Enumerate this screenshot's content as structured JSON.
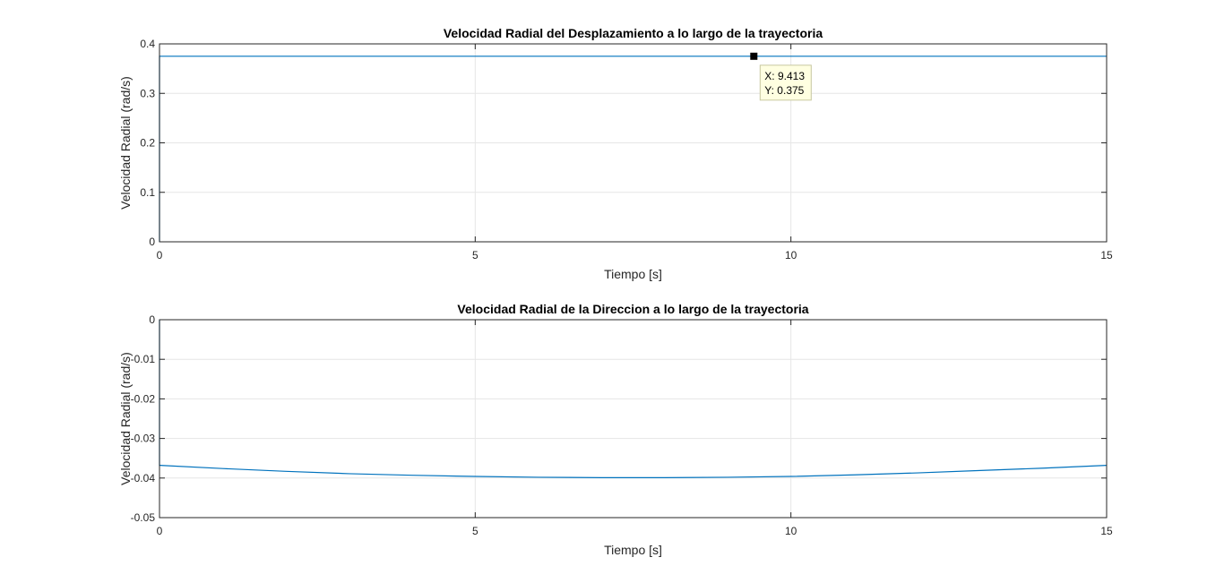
{
  "chart_data": [
    {
      "type": "line",
      "title": "Velocidad Radial del Desplazamiento a lo largo de la trayectoria",
      "xlabel": "Tiempo [s]",
      "ylabel": "Velocidad Radial (rad/s)",
      "xlim": [
        0,
        15
      ],
      "ylim": [
        0,
        0.4
      ],
      "xticks": [
        0,
        5,
        10,
        15
      ],
      "xtick_labels": [
        "0",
        "5",
        "10",
        "15"
      ],
      "yticks": [
        0,
        0.1,
        0.2,
        0.3,
        0.4
      ],
      "ytick_labels": [
        "0",
        "0.1",
        "0.2",
        "0.3",
        "0.4"
      ],
      "grid": true,
      "series_color": "#0072BD",
      "series": [
        {
          "x": [
            0,
            0,
            0.01,
            15
          ],
          "y": [
            0,
            0.375,
            0.375,
            0.375
          ]
        }
      ],
      "datatip": {
        "x": 9.413,
        "y": 0.375,
        "label_x": "X: 9.413",
        "label_y": "Y: 0.375"
      }
    },
    {
      "type": "line",
      "title": "Velocidad Radial de la Direccion a lo largo de la trayectoria",
      "xlabel": "Tiempo [s]",
      "ylabel": "Velocidad Radial (rad/s)",
      "xlim": [
        0,
        15
      ],
      "ylim": [
        -0.05,
        0
      ],
      "xticks": [
        0,
        5,
        10,
        15
      ],
      "xtick_labels": [
        "0",
        "5",
        "10",
        "15"
      ],
      "yticks": [
        0,
        -0.01,
        -0.02,
        -0.03,
        -0.04,
        -0.05
      ],
      "ytick_labels": [
        "0",
        "-0.01",
        "-0.02",
        "-0.03",
        "-0.04",
        "-0.05"
      ],
      "grid": true,
      "series_color": "#0072BD",
      "series": [
        {
          "x": [
            0,
            0,
            0.01,
            1,
            2,
            3,
            4,
            5,
            6,
            7,
            7.5,
            8,
            9,
            10,
            11,
            12,
            13,
            14,
            15
          ],
          "y": [
            0,
            -0.0368,
            -0.0368,
            -0.0376,
            -0.0383,
            -0.0389,
            -0.0393,
            -0.0396,
            -0.0398,
            -0.0399,
            -0.0399,
            -0.0399,
            -0.0398,
            -0.0396,
            -0.0392,
            -0.0387,
            -0.0381,
            -0.0375,
            -0.0368
          ]
        }
      ]
    }
  ]
}
